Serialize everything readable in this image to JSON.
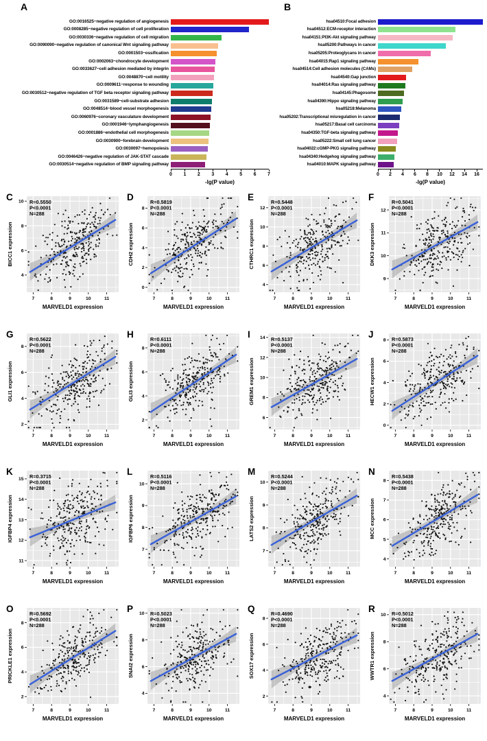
{
  "panels": {
    "A": {
      "letter": "A"
    },
    "B": {
      "letter": "B"
    }
  },
  "chart_data": [
    {
      "id": "A",
      "type": "bar",
      "letter": "A",
      "orientation": "horizontal",
      "xlabel": "-lg(P value)",
      "xmax": 7,
      "xticks": [
        0,
        1,
        2,
        3,
        4,
        5,
        6,
        7
      ],
      "categories": [
        "GO:0016525~negative regulation of angiogenesis",
        "GO:0008285~negative regulation of cell proliferation",
        "GO:0030336~negative regulation of cell migration",
        "GO:0090090~negative regulation of canonical Wnt signaling pathway",
        "GO:0001503~ossification",
        "GO:0002063~chondrocyte development",
        "GO:0033627~cell adhesion mediated by integrin",
        "GO:0048870~cell motility",
        "GO:0009611~response to wounding",
        "GO:0030512~negative regulation of TGF beta receptor signaling pathway",
        "GO:0031589~cell-substrate adhesion",
        "GO:0048514~blood vessel morphogenesis",
        "GO:0060976~coronary vasculature development",
        "GO:0001946~lymphangiogenesis",
        "GO:0001886~endothelial cell morphogenesis",
        "GO:0030900~forebrain development",
        "GO:0030097~hemopoiesis",
        "GO:0046426~negative regulation of JAK-STAT cascade",
        "GO:0030514~negative regulation of BMP signaling pathway"
      ],
      "values": [
        7.0,
        5.6,
        3.6,
        3.4,
        3.3,
        3.2,
        3.15,
        3.1,
        3.05,
        3.0,
        2.95,
        2.9,
        2.85,
        2.8,
        2.75,
        2.7,
        2.65,
        2.55,
        2.45
      ],
      "colors": [
        "#e31a1c",
        "#2026c9",
        "#33b54a",
        "#f9c08f",
        "#f5912e",
        "#d354c9",
        "#e8559c",
        "#f2a0bb",
        "#27a79c",
        "#cc2a1e",
        "#0f7d6c",
        "#203a8f",
        "#8c1127",
        "#55101e",
        "#a6d785",
        "#ecc27e",
        "#9a5fc0",
        "#c9b45a",
        "#8e1f77"
      ]
    },
    {
      "id": "B",
      "type": "bar",
      "letter": "B",
      "orientation": "horizontal",
      "xlabel": "-lg(P value)",
      "xmax": 17,
      "xticks": [
        0,
        2,
        4,
        6,
        8,
        10,
        12,
        14,
        16
      ],
      "categories": [
        "hsa04510:Focal adhesion",
        "hsa04512:ECM-receptor interaction",
        "hsa04151:PI3K-Akt signaling pathway",
        "hsa05200:Pathways in cancer",
        "hsa05205:Proteoglycans in cancer",
        "hsa04015:Rap1 signaling pathway",
        "hsa04514:Cell adhesion molecules (CAMs)",
        "hsa04540:Gap junction",
        "hsa04014:Ras signaling pathway",
        "hsa04145:Phagosome",
        "hsa04390:Hippo signaling pathway",
        "hsa05218:Melanoma",
        "hsa05202:Transcriptional misregulation in cancer",
        "hsa05217:Basal cell carcinoma",
        "hsa04350:TGF-beta signaling pathway",
        "hsa05222:Small cell lung cancer",
        "hsa04022:cGMP-PKG signaling pathway",
        "hsa04340:Hedgehog signaling pathway",
        "hsa04010:MAPK signaling pathway"
      ],
      "values": [
        17,
        12.6,
        12.1,
        11.0,
        8.6,
        6.6,
        5.6,
        4.6,
        4.4,
        4.2,
        4.0,
        3.8,
        3.6,
        3.4,
        3.2,
        3.1,
        2.9,
        2.7,
        2.5
      ],
      "colors": [
        "#1c1ccd",
        "#8fe38f",
        "#f6b8c4",
        "#3fd6cc",
        "#ef6daa",
        "#f5912e",
        "#e0a264",
        "#e31a1c",
        "#1f7a1f",
        "#4e6b22",
        "#2f9e4f",
        "#2f55c0",
        "#1b2a70",
        "#7c3fbf",
        "#c2188c",
        "#f2a0bb",
        "#8a8a1e",
        "#3dae6b",
        "#6e1289"
      ]
    },
    {
      "id": "C",
      "type": "scatter",
      "letter": "C",
      "gene": "BICC1",
      "ylabel": "BICC1 expression",
      "xlabel": "MARVELD1 expression",
      "annotation": {
        "R": "R=0.5550",
        "P": "P<0.0001",
        "N": "N=288"
      },
      "r": 0.555,
      "n": 288,
      "xlim": [
        6.65,
        11.65
      ],
      "xticks": [
        7,
        8,
        9,
        10,
        11
      ],
      "ylim": [
        2.6,
        10.4
      ],
      "yticks": [
        4,
        6,
        8,
        10
      ],
      "seed": 3
    },
    {
      "id": "D",
      "type": "scatter",
      "letter": "D",
      "gene": "CDH2",
      "ylabel": "CDH2 expression",
      "xlabel": "MARVELD1 expression",
      "annotation": {
        "R": "R=0.5819",
        "P": "P<0.0001",
        "N": "N=288"
      },
      "r": 0.5819,
      "n": 288,
      "xlim": [
        6.65,
        11.65
      ],
      "xticks": [
        7,
        8,
        9,
        10,
        11
      ],
      "ylim": [
        -0.5,
        9.2
      ],
      "yticks": [
        0,
        2,
        4,
        6,
        8
      ],
      "seed": 4
    },
    {
      "id": "E",
      "type": "scatter",
      "letter": "E",
      "gene": "CTHRC1",
      "ylabel": "CTHRC1 expression",
      "xlabel": "MARVELD1 expression",
      "annotation": {
        "R": "R=0.5448",
        "P": "P<0.0001",
        "N": "N=288"
      },
      "r": 0.5448,
      "n": 288,
      "xlim": [
        6.65,
        11.65
      ],
      "xticks": [
        7,
        8,
        9,
        10,
        11
      ],
      "ylim": [
        3.2,
        13.2
      ],
      "yticks": [
        4,
        6,
        8,
        10,
        12
      ],
      "seed": 5
    },
    {
      "id": "F",
      "type": "scatter",
      "letter": "F",
      "gene": "DKK3",
      "ylabel": "DKK3 expression",
      "xlabel": "MARVELD1 expression",
      "annotation": {
        "R": "R=0.5041",
        "P": "P<0.0001",
        "N": "N=288"
      },
      "r": 0.5041,
      "n": 288,
      "xlim": [
        6.65,
        11.65
      ],
      "xticks": [
        7,
        8,
        9,
        10,
        11
      ],
      "ylim": [
        8.4,
        12.6
      ],
      "yticks": [
        9,
        10,
        11,
        12
      ],
      "seed": 6
    },
    {
      "id": "G",
      "type": "scatter",
      "letter": "G",
      "gene": "GLI1",
      "ylabel": "GLI1 expression",
      "xlabel": "MARVELD1 expression",
      "annotation": {
        "R": "R=0.5622",
        "P": "P<0.0001",
        "N": "N=288"
      },
      "r": 0.5622,
      "n": 288,
      "xlim": [
        6.65,
        11.65
      ],
      "xticks": [
        7,
        8,
        9,
        10,
        11
      ],
      "ylim": [
        1.6,
        9.0
      ],
      "yticks": [
        2,
        4,
        6,
        8
      ],
      "seed": 7
    },
    {
      "id": "H",
      "type": "scatter",
      "letter": "H",
      "gene": "GLI3",
      "ylabel": "GLI3 expression",
      "xlabel": "MARVELD1 expression",
      "annotation": {
        "R": "R=0.6111",
        "P": "P<0.0001",
        "N": "N=288"
      },
      "r": 0.6111,
      "n": 288,
      "xlim": [
        6.65,
        11.65
      ],
      "xticks": [
        7,
        8,
        9,
        10,
        11
      ],
      "ylim": [
        1.2,
        9.2
      ],
      "yticks": [
        2,
        4,
        6,
        8
      ],
      "seed": 8
    },
    {
      "id": "I",
      "type": "scatter",
      "letter": "I",
      "gene": "GREM1",
      "ylabel": "GREM1 expression",
      "xlabel": "MARVELD1 expression",
      "annotation": {
        "R": "R=0.5137",
        "P": "P<0.0001",
        "N": "N=288"
      },
      "r": 0.5137,
      "n": 288,
      "xlim": [
        6.65,
        11.65
      ],
      "xticks": [
        7,
        8,
        9,
        10,
        11
      ],
      "ylim": [
        4.8,
        14.4
      ],
      "yticks": [
        6,
        8,
        10,
        12,
        14
      ],
      "seed": 9
    },
    {
      "id": "J",
      "type": "scatter",
      "letter": "J",
      "gene": "HECW1",
      "ylabel": "HECW1 expression",
      "xlabel": "MARVELD1 expression",
      "annotation": {
        "R": "R=0.5873",
        "P": "P<0.0001",
        "N": "N=288"
      },
      "r": 0.5873,
      "n": 288,
      "xlim": [
        6.65,
        11.65
      ],
      "xticks": [
        7,
        8,
        9,
        10,
        11
      ],
      "ylim": [
        -0.4,
        8.6
      ],
      "yticks": [
        0,
        2,
        4,
        6,
        8
      ],
      "seed": 10
    },
    {
      "id": "K",
      "type": "scatter",
      "letter": "K",
      "gene": "IGFBP4",
      "ylabel": "IGFBP4 expression",
      "xlabel": "MARVELD1 expression",
      "annotation": {
        "R": "R=0.3715",
        "P": "P<0.0001",
        "N": "N=288"
      },
      "r": 0.3715,
      "n": 288,
      "xlim": [
        6.65,
        11.65
      ],
      "xticks": [
        7,
        8,
        9,
        10,
        11
      ],
      "ylim": [
        10.7,
        15.4
      ],
      "yticks": [
        11,
        12,
        13,
        14,
        15
      ],
      "seed": 11
    },
    {
      "id": "L",
      "type": "scatter",
      "letter": "L",
      "gene": "IGFBP6",
      "ylabel": "IGFBP6 expression",
      "xlabel": "MARVELD1 expression",
      "annotation": {
        "R": "R=0.5116",
        "P": "P<0.0001",
        "N": "N=288"
      },
      "r": 0.5116,
      "n": 288,
      "xlim": [
        6.65,
        11.65
      ],
      "xticks": [
        7,
        8,
        9,
        10,
        11
      ],
      "ylim": [
        6.2,
        10.6
      ],
      "yticks": [
        7,
        8,
        9,
        10
      ],
      "seed": 12
    },
    {
      "id": "M",
      "type": "scatter",
      "letter": "M",
      "gene": "LATS2",
      "ylabel": "LATS2 expression",
      "xlabel": "MARVELD1 expression",
      "annotation": {
        "R": "R=0.5244",
        "P": "P<0.0001",
        "N": "N=288"
      },
      "r": 0.5244,
      "n": 288,
      "xlim": [
        6.65,
        11.65
      ],
      "xticks": [
        7,
        8,
        9,
        10,
        11
      ],
      "ylim": [
        6.3,
        10.5
      ],
      "yticks": [
        7,
        8,
        9,
        10
      ],
      "seed": 13
    },
    {
      "id": "N",
      "type": "scatter",
      "letter": "N",
      "gene": "MCC",
      "ylabel": "MCC expression",
      "xlabel": "MARVELD1 expression",
      "annotation": {
        "R": "R=0.5438",
        "P": "P<0.0001",
        "N": "N=288"
      },
      "r": 0.5438,
      "n": 288,
      "xlim": [
        6.65,
        11.65
      ],
      "xticks": [
        7,
        8,
        9,
        10,
        11
      ],
      "ylim": [
        3.6,
        8.5
      ],
      "yticks": [
        4,
        5,
        6,
        7,
        8
      ],
      "seed": 14
    },
    {
      "id": "O",
      "type": "scatter",
      "letter": "O",
      "gene": "PRICKLE1",
      "ylabel": "PRICKLE1 expression",
      "xlabel": "MARVELD1 expression",
      "annotation": {
        "R": "R=0.5692",
        "P": "P<0.0001",
        "N": "N=288"
      },
      "r": 0.5692,
      "n": 288,
      "xlim": [
        6.65,
        11.65
      ],
      "xticks": [
        7,
        8,
        9,
        10,
        11
      ],
      "ylim": [
        1.4,
        9.2
      ],
      "yticks": [
        2,
        4,
        6,
        8
      ],
      "seed": 15
    },
    {
      "id": "P",
      "type": "scatter",
      "letter": "P",
      "gene": "SNAI2",
      "ylabel": "SNAI2 expression",
      "xlabel": "MARVELD1 expression",
      "annotation": {
        "R": "R=0.5023",
        "P": "P<0.0001",
        "N": "N=288"
      },
      "r": 0.5023,
      "n": 288,
      "xlim": [
        6.65,
        11.65
      ],
      "xticks": [
        7,
        8,
        9,
        10,
        11
      ],
      "ylim": [
        3.2,
        10.4
      ],
      "yticks": [
        4,
        6,
        8,
        10
      ],
      "seed": 16
    },
    {
      "id": "Q",
      "type": "scatter",
      "letter": "Q",
      "gene": "SOX17",
      "ylabel": "SOX17 expression",
      "xlabel": "MARVELD1 expression",
      "annotation": {
        "R": "R=0.4690",
        "P": "P<0.0001",
        "N": "N=288"
      },
      "r": 0.469,
      "n": 288,
      "xlim": [
        6.65,
        11.65
      ],
      "xticks": [
        7,
        8,
        9,
        10,
        11
      ],
      "ylim": [
        1.4,
        8.8
      ],
      "yticks": [
        2,
        4,
        6,
        8
      ],
      "seed": 17
    },
    {
      "id": "R",
      "type": "scatter",
      "letter": "R",
      "gene": "WWTR1",
      "ylabel": "WWTR1 expression",
      "xlabel": "MARVELD1 expression",
      "annotation": {
        "R": "R=0.5012",
        "P": "P<0.0001",
        "N": "N=288"
      },
      "r": 0.5012,
      "n": 288,
      "xlim": [
        6.65,
        11.65
      ],
      "xticks": [
        7,
        8,
        9,
        10,
        11
      ],
      "ylim": [
        3.4,
        10.5
      ],
      "yticks": [
        4,
        6,
        8,
        10
      ],
      "seed": 18
    }
  ]
}
